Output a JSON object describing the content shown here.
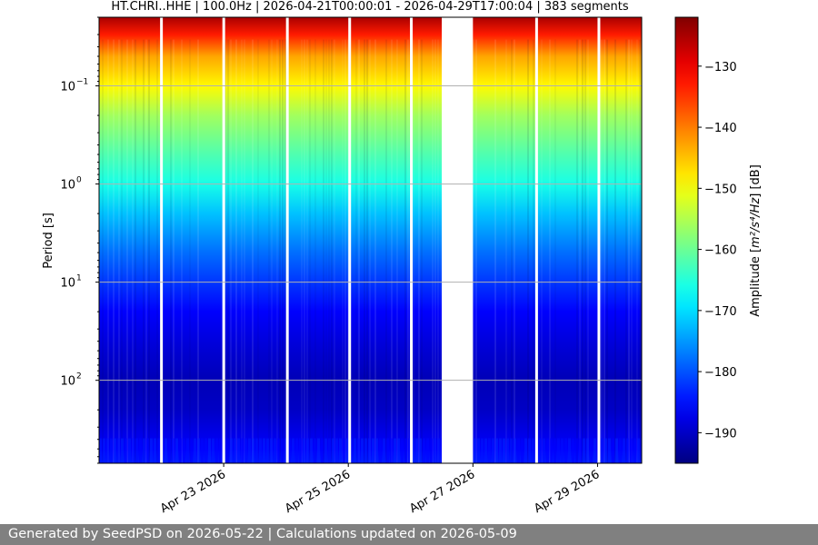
{
  "chart_data": {
    "type": "heatmap",
    "title": "HT.CHRI..HHE | 100.0Hz | 2026-04-21T00:00:01 - 2026-04-29T17:00:04 | 383 segments",
    "xlabel": "",
    "ylabel": "Period [s]",
    "x_axis": {
      "type": "date",
      "range": [
        "2026-04-21T00:00:01",
        "2026-04-29T17:00:04"
      ],
      "tick_labels": [
        "Apr 23 2026",
        "Apr 25 2026",
        "Apr 27 2026",
        "Apr 29 2026"
      ],
      "tick_dates": [
        "2026-04-23",
        "2026-04-25",
        "2026-04-27",
        "2026-04-29"
      ]
    },
    "y_axis": {
      "scale": "log",
      "inverted": true,
      "unit": "s",
      "range": [
        0.02,
        700
      ],
      "ticks": [
        0.1,
        1,
        10,
        100
      ],
      "tick_labels": [
        "10",
        "10",
        "10",
        "10"
      ],
      "tick_exponents": [
        "−1",
        "0",
        "1",
        "2"
      ]
    },
    "grid": true,
    "data_gaps": [
      {
        "start": "2026-04-21T23:30",
        "end": "2026-04-21T23:45"
      },
      {
        "start": "2026-04-22T23:30",
        "end": "2026-04-22T23:45"
      },
      {
        "start": "2026-04-24T00:00",
        "end": "2026-04-24T00:10"
      },
      {
        "start": "2026-04-25T00:00",
        "end": "2026-04-25T00:10"
      },
      {
        "start": "2026-04-25T23:45",
        "end": "2026-04-26T00:00"
      },
      {
        "start": "2026-04-26T12:00",
        "end": "2026-04-27T00:00"
      },
      {
        "start": "2026-04-28T00:00",
        "end": "2026-04-28T00:10"
      },
      {
        "start": "2026-04-29T00:00",
        "end": "2026-04-29T00:10"
      }
    ],
    "amplitude_profile": {
      "period_s": [
        0.02,
        0.03,
        0.05,
        0.1,
        0.2,
        0.5,
        1,
        2,
        5,
        10,
        20,
        50,
        100,
        200,
        500,
        700
      ],
      "db": [
        -125,
        -133,
        -143,
        -149,
        -156,
        -162,
        -166,
        -172,
        -178,
        -182,
        -186,
        -189,
        -191,
        -190,
        -186,
        -184
      ]
    },
    "colorbar": {
      "label": "Amplitude [m²/s⁴/Hz] [dB]",
      "label_plain": "Amplitude [",
      "label_math": "m²/s⁴/Hz",
      "label_tail": "] [dB]",
      "range": [
        -195,
        -122
      ],
      "ticks": [
        -130,
        -140,
        -150,
        -160,
        -170,
        -180,
        -190
      ],
      "tick_labels": [
        "−130",
        "−140",
        "−150",
        "−160",
        "−170",
        "−180",
        "−190"
      ],
      "colormap": "jet"
    },
    "colors": {
      "grid": "#b0b0b0",
      "gap": "#ffffff"
    }
  },
  "footer": {
    "text": "Generated by SeedPSD on 2026-05-22 | Calculations updated on 2026-05-09"
  }
}
